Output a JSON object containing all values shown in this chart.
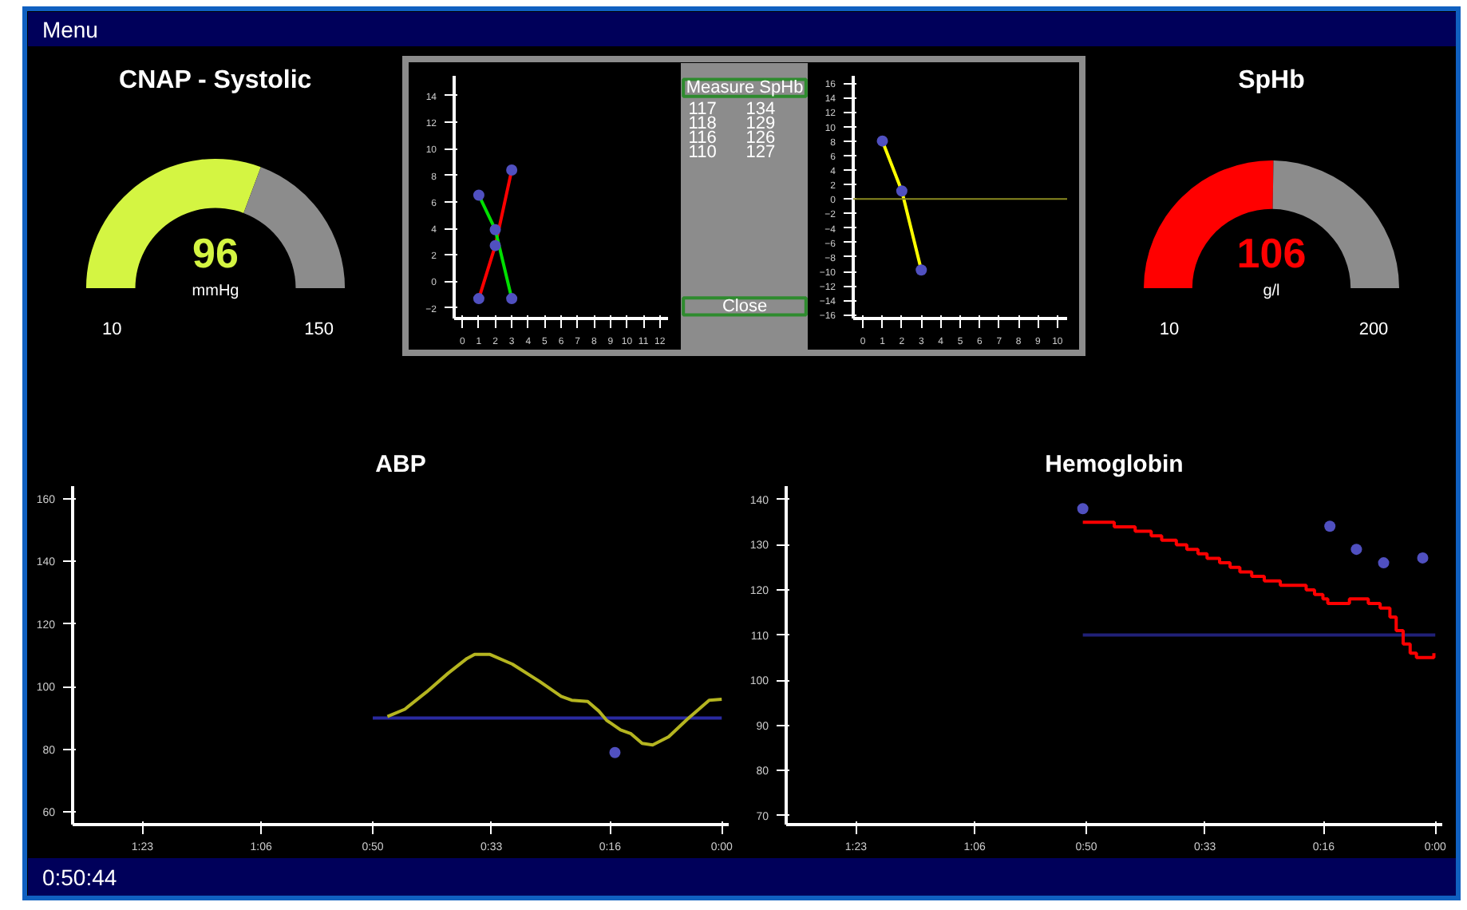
{
  "chart_data": [
    {
      "type": "other",
      "annotations": [
        "Menu",
        "0:50:44"
      ],
      "colors": [
        "#00005a",
        "#ffffff"
      ]
    },
    {
      "type": "donut",
      "title": "CNAP - Systolic",
      "categories": [
        null,
        null
      ],
      "values": [
        61.4,
        38.6
      ],
      "colors": [
        "#d4f542",
        "#8c8c8c"
      ],
      "annotations": [
        "96",
        "mmHg",
        "10",
        "150"
      ]
    },
    {
      "type": "line",
      "xlim": [
        -0.5,
        12.5
      ],
      "ylim": [
        -2.8,
        15.5
      ],
      "xticks": [
        0,
        1,
        2,
        3,
        4,
        5,
        6,
        7,
        8,
        9,
        10,
        11,
        12
      ],
      "yticks": [
        -2,
        0,
        2,
        4,
        6,
        8,
        10,
        12,
        14
      ],
      "grid": false,
      "series": [
        {
          "type": "line",
          "color": "#ff0000",
          "x": [
            1,
            2,
            3
          ],
          "values": [
            -1.3,
            2.7,
            8.4
          ]
        },
        {
          "type": "line",
          "color": "#00e000",
          "x": [
            1,
            2,
            3
          ],
          "values": [
            6.5,
            3.9,
            -1.3
          ]
        },
        {
          "type": "scatter",
          "color": "#5050c0",
          "x": [
            1,
            2,
            3,
            1,
            2,
            3
          ],
          "values": [
            -1.3,
            2.7,
            8.4,
            6.5,
            3.9,
            -1.3
          ]
        }
      ]
    },
    {
      "type": "other",
      "title": "Measure SpHb",
      "annotations": [
        "117",
        "134",
        "118",
        "129",
        "116",
        "126",
        "110",
        "127",
        "Close"
      ],
      "colors": [
        "#8c8c8c",
        "#2e8b2e"
      ]
    },
    {
      "type": "line",
      "xlim": [
        -0.5,
        10.5
      ],
      "ylim": [
        -16.5,
        17
      ],
      "xticks": [
        0,
        1,
        2,
        3,
        4,
        5,
        6,
        7,
        8,
        9,
        10
      ],
      "yticks": [
        -16,
        -14,
        -12,
        -10,
        -8,
        -6,
        -4,
        -2,
        0,
        2,
        4,
        6,
        8,
        10,
        12,
        14,
        16
      ],
      "grid": false,
      "ref_lines": [
        {
          "axis": "y",
          "value": 0,
          "color": "#8a8a20"
        }
      ],
      "series": [
        {
          "type": "line",
          "color": "#ffff00",
          "x": [
            1,
            2,
            3
          ],
          "values": [
            8,
            1.1,
            -9.8
          ]
        },
        {
          "type": "scatter",
          "color": "#5050c0",
          "x": [
            1,
            2,
            3
          ],
          "values": [
            8,
            1.1,
            -9.8
          ]
        }
      ]
    },
    {
      "type": "donut",
      "title": "SpHb",
      "categories": [
        null,
        null
      ],
      "values": [
        50.5,
        49.5
      ],
      "colors": [
        "#ff0000",
        "#8c8c8c"
      ],
      "annotations": [
        "106",
        "g/l",
        "10",
        "200"
      ]
    },
    {
      "type": "line",
      "title": "ABP",
      "xlim": [
        -93,
        1
      ],
      "ylim": [
        56,
        164
      ],
      "grid": false,
      "xticks": [
        {
          "value": -83,
          "label": "1:23"
        },
        {
          "value": -66,
          "label": "1:06"
        },
        {
          "value": -50,
          "label": "0:50"
        },
        {
          "value": -33,
          "label": "0:33"
        },
        {
          "value": -16,
          "label": "0:16"
        },
        {
          "value": 0,
          "label": "0:00"
        }
      ],
      "yticks": [
        60,
        80,
        100,
        120,
        140,
        160
      ],
      "series": [
        {
          "type": "line",
          "color": "#2a2aa0",
          "x": [
            -50,
            0
          ],
          "values": [
            90,
            90
          ]
        },
        {
          "type": "line",
          "color": "#b5b520",
          "x": [
            -47.9,
            -45.4,
            -42.3,
            -39.2,
            -36.5,
            -35.4,
            -33.2,
            -30.0,
            -26.1,
            -23.0,
            -21.5,
            -19.2,
            -17.6,
            -16.5,
            -14.5,
            -13.0,
            -11.4,
            -9.9,
            -7.6,
            -4.9,
            -1.8,
            0
          ],
          "values": [
            90.5,
            92.8,
            98.3,
            104.3,
            109.0,
            110.3,
            110.3,
            107.2,
            101.7,
            96.9,
            95.7,
            95.3,
            92.2,
            89.3,
            86.2,
            85.0,
            81.9,
            81.4,
            84.0,
            89.7,
            95.7,
            96.0
          ]
        },
        {
          "type": "scatter",
          "color": "#5050c0",
          "x": [
            -15.3
          ],
          "values": [
            79.0
          ]
        }
      ]
    },
    {
      "type": "line",
      "title": "Hemoglobin",
      "xlim": [
        -93,
        1
      ],
      "ylim": [
        68,
        143
      ],
      "grid": false,
      "xticks": [
        {
          "value": -83,
          "label": "1:23"
        },
        {
          "value": -66,
          "label": "1:06"
        },
        {
          "value": -50,
          "label": "0:50"
        },
        {
          "value": -33,
          "label": "0:33"
        },
        {
          "value": -16,
          "label": "0:16"
        },
        {
          "value": 0,
          "label": "0:00"
        }
      ],
      "yticks": [
        70,
        80,
        90,
        100,
        110,
        120,
        130,
        140
      ],
      "series": [
        {
          "type": "line",
          "color": "#202078",
          "x": [
            -50.5,
            0
          ],
          "values": [
            110,
            110
          ]
        },
        {
          "type": "step",
          "color": "#ff0000",
          "x": [
            -50.5,
            -46.0,
            -43.0,
            -40.7,
            -39.2,
            -37.1,
            -35.6,
            -34.0,
            -32.7,
            -30.9,
            -29.4,
            -28.0,
            -26.3,
            -24.5,
            -22.2,
            -18.5,
            -17.3,
            -16.1,
            -15.4,
            -12.3,
            -9.6,
            -7.9,
            -6.5,
            -5.6,
            -4.6,
            -3.6,
            -2.7,
            -0.2
          ],
          "values": [
            135,
            134,
            133,
            132,
            131,
            130,
            129,
            128,
            127,
            126,
            125,
            124,
            123,
            122,
            121,
            120,
            119,
            118,
            117,
            118,
            117,
            116,
            114,
            111,
            108,
            106,
            105,
            106
          ]
        },
        {
          "type": "scatter",
          "color": "#5050c0",
          "x": [
            -50.5,
            -15.1,
            -11.3,
            -7.4,
            -1.8
          ],
          "values": [
            138.0,
            134.1,
            129.0,
            126.0,
            127.1
          ]
        }
      ]
    }
  ]
}
